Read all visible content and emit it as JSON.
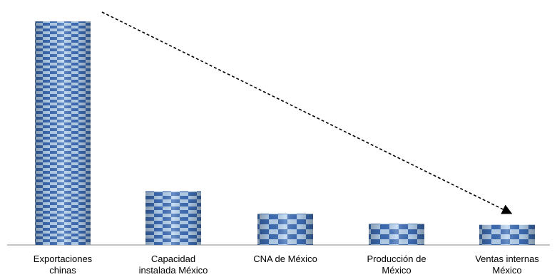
{
  "chart_data": {
    "type": "bar",
    "title": "",
    "xlabel": "",
    "ylabel": "",
    "categories": [
      [
        "Exportaciones",
        "chinas"
      ],
      [
        "Capacidad",
        "instalada México"
      ],
      [
        "CNA de México"
      ],
      [
        "Producción de",
        "México"
      ],
      [
        "Ventas internas",
        "México"
      ]
    ],
    "values": [
      100,
      24,
      14,
      9.5,
      9
    ],
    "ylim": [
      0,
      100
    ],
    "grid": false,
    "bar_pattern": "checkered",
    "colors": {
      "bar_light": "#b9d4f0",
      "bar_dark": "#3f6fb8",
      "axis": "#888888",
      "arrow": "#000000"
    },
    "annotation": {
      "type": "dashed-arrow",
      "from_category": 0,
      "to_category": 4
    }
  }
}
